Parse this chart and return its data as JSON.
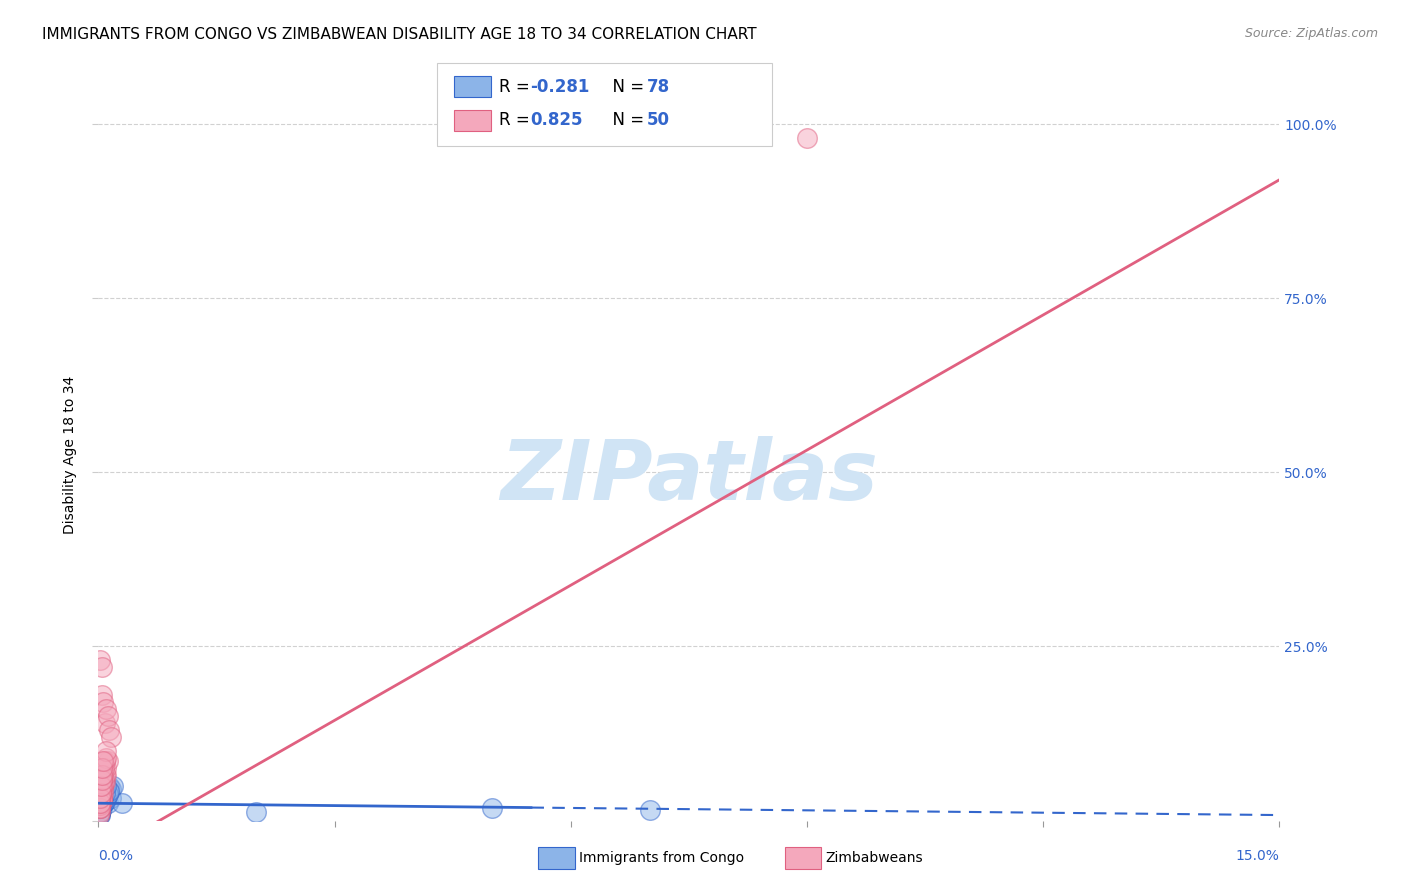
{
  "title": "IMMIGRANTS FROM CONGO VS ZIMBABWEAN DISABILITY AGE 18 TO 34 CORRELATION CHART",
  "source": "Source: ZipAtlas.com",
  "ylabel": "Disability Age 18 to 34",
  "xlim": [
    0.0,
    0.15
  ],
  "ylim": [
    0.0,
    1.05
  ],
  "right_yticks": [
    0.0,
    0.25,
    0.5,
    0.75,
    1.0
  ],
  "right_yticklabels": [
    "",
    "25.0%",
    "50.0%",
    "75.0%",
    "100.0%"
  ],
  "watermark": "ZIPatlas",
  "legend_blue_label": "Immigrants from Congo",
  "legend_pink_label": "Zimbabweans",
  "legend_blue_R": "-0.281",
  "legend_blue_N": "78",
  "legend_pink_R": "0.825",
  "legend_pink_N": "50",
  "blue_scatter_x": [
    0.0002,
    0.0003,
    0.0004,
    0.0003,
    0.0005,
    0.0006,
    0.0007,
    0.0005,
    0.0004,
    0.0002,
    0.0001,
    0.0002,
    0.0003,
    0.0004,
    0.0004,
    0.0006,
    0.0007,
    0.0008,
    0.001,
    0.0012,
    0.0002,
    0.0003,
    0.0004,
    0.0005,
    0.0006,
    0.0008,
    0.001,
    0.0012,
    0.0014,
    0.0016,
    0.0002,
    0.0002,
    0.0003,
    0.0004,
    0.0005,
    0.0006,
    0.0007,
    0.0008,
    0.0009,
    0.001,
    0.0002,
    0.0002,
    0.0002,
    0.0003,
    0.0003,
    0.0004,
    0.0004,
    0.0005,
    0.0006,
    0.0007,
    0.0002,
    0.0004,
    0.0006,
    0.0008,
    0.001,
    0.0012,
    0.0014,
    0.0016,
    0.0018,
    0.003,
    0.0001,
    0.0002,
    0.0002,
    0.0004,
    0.0006,
    0.0008,
    0.001,
    0.0012,
    0.0014,
    0.0006,
    0.0002,
    0.0004,
    0.0006,
    0.0008,
    0.001,
    0.07,
    0.05,
    0.02
  ],
  "blue_scatter_y": [
    0.02,
    0.025,
    0.022,
    0.015,
    0.03,
    0.028,
    0.025,
    0.035,
    0.018,
    0.01,
    0.012,
    0.02,
    0.018,
    0.025,
    0.022,
    0.032,
    0.028,
    0.04,
    0.032,
    0.025,
    0.018,
    0.025,
    0.022,
    0.028,
    0.032,
    0.038,
    0.04,
    0.045,
    0.05,
    0.032,
    0.012,
    0.018,
    0.022,
    0.025,
    0.028,
    0.032,
    0.038,
    0.042,
    0.045,
    0.032,
    0.008,
    0.012,
    0.018,
    0.022,
    0.025,
    0.028,
    0.032,
    0.038,
    0.042,
    0.045,
    0.018,
    0.022,
    0.025,
    0.028,
    0.032,
    0.038,
    0.042,
    0.045,
    0.05,
    0.025,
    0.008,
    0.012,
    0.018,
    0.022,
    0.025,
    0.028,
    0.032,
    0.038,
    0.042,
    0.05,
    0.018,
    0.025,
    0.032,
    0.04,
    0.05,
    0.015,
    0.018,
    0.012
  ],
  "pink_scatter_x": [
    0.0002,
    0.0004,
    0.0006,
    0.0003,
    0.0005,
    0.0008,
    0.001,
    0.0006,
    0.0004,
    0.0002,
    0.0001,
    0.0002,
    0.0002,
    0.0004,
    0.0004,
    0.0006,
    0.0007,
    0.0008,
    0.001,
    0.0012,
    0.0002,
    0.0003,
    0.0004,
    0.0005,
    0.0006,
    0.0008,
    0.001,
    0.0012,
    0.0014,
    0.0016,
    0.0002,
    0.0002,
    0.0003,
    0.0004,
    0.0005,
    0.0006,
    0.0007,
    0.0008,
    0.0009,
    0.001,
    0.0002,
    0.0002,
    0.0002,
    0.0003,
    0.0003,
    0.0004,
    0.0004,
    0.0005,
    0.0006,
    0.09
  ],
  "pink_scatter_y": [
    0.02,
    0.035,
    0.04,
    0.025,
    0.05,
    0.055,
    0.065,
    0.045,
    0.03,
    0.012,
    0.008,
    0.018,
    0.022,
    0.032,
    0.028,
    0.05,
    0.055,
    0.065,
    0.075,
    0.085,
    0.23,
    0.055,
    0.22,
    0.18,
    0.17,
    0.14,
    0.16,
    0.15,
    0.13,
    0.12,
    0.025,
    0.032,
    0.04,
    0.05,
    0.06,
    0.065,
    0.075,
    0.085,
    0.09,
    0.1,
    0.018,
    0.025,
    0.032,
    0.04,
    0.05,
    0.058,
    0.065,
    0.075,
    0.085,
    0.98
  ],
  "blue_color": "#8CB4E8",
  "pink_color": "#F4A8BC",
  "blue_line_color": "#3366CC",
  "pink_line_color": "#E06080",
  "grid_color": "#CCCCCC",
  "title_fontsize": 11,
  "source_fontsize": 9,
  "watermark_color": "#D0E4F5",
  "watermark_fontsize": 60,
  "dot_size": 200
}
